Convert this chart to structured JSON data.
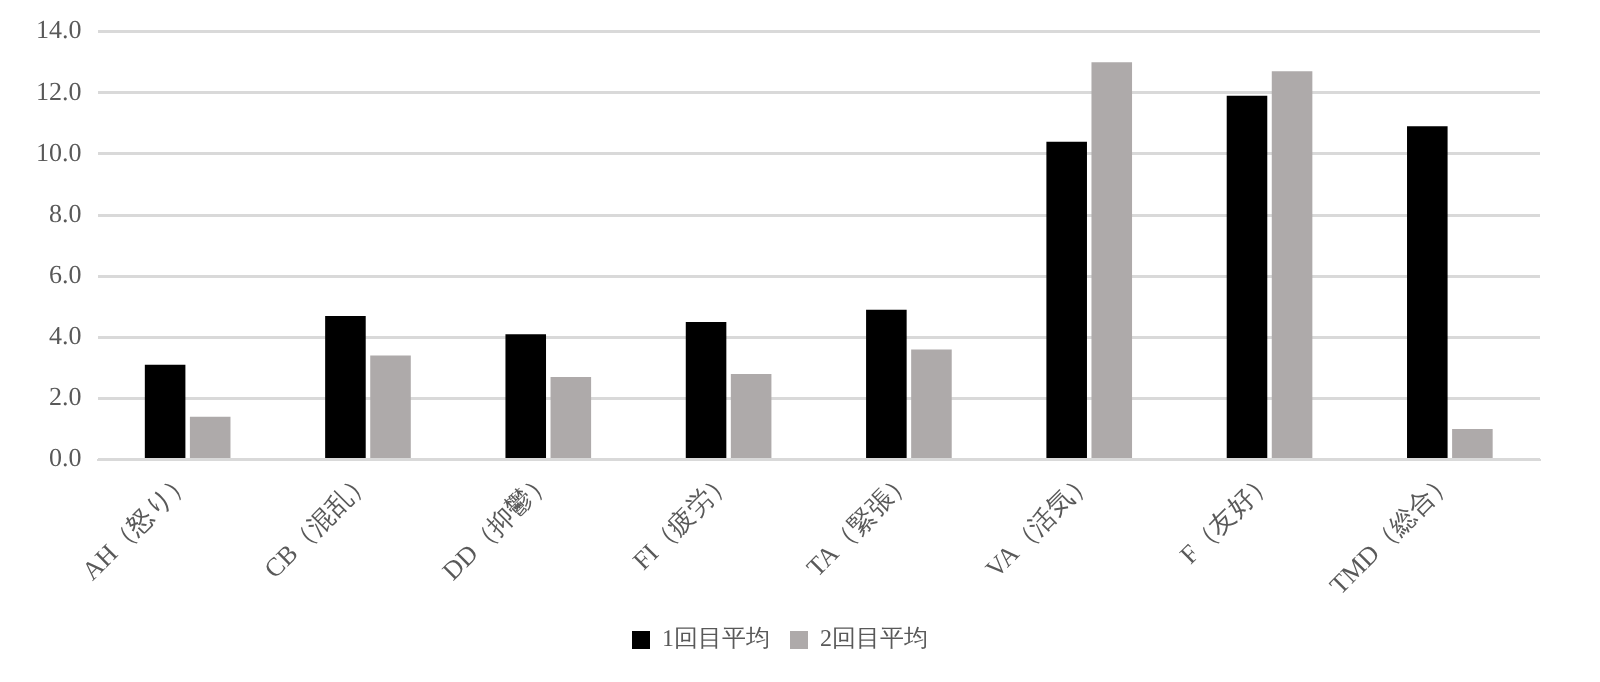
{
  "chart_data": {
    "type": "bar",
    "categories": [
      "AH（怒り）",
      "CB（混乱）",
      "DD（抑鬱）",
      "FI（疲労）",
      "TA（緊張）",
      "VA（活気）",
      "F（友好）",
      "TMD（総合）"
    ],
    "series": [
      {
        "name": "1回目平均",
        "color": "#000000",
        "values": [
          3.1,
          4.7,
          4.1,
          4.5,
          4.9,
          10.4,
          11.9,
          10.9
        ]
      },
      {
        "name": "2回目平均",
        "color": "#aeaaaa",
        "values": [
          1.4,
          3.4,
          2.7,
          2.8,
          3.6,
          13.0,
          12.7,
          1.0
        ]
      }
    ],
    "ylim": [
      0,
      14
    ],
    "yticks": [
      {
        "value": 0,
        "label": "0.0"
      },
      {
        "value": 2,
        "label": "2.0"
      },
      {
        "value": 4,
        "label": "4.0"
      },
      {
        "value": 6,
        "label": "6.0"
      },
      {
        "value": 8,
        "label": "8.0"
      },
      {
        "value": 10,
        "label": "10.0"
      },
      {
        "value": 12,
        "label": "12.0"
      },
      {
        "value": 14,
        "label": "14.0"
      }
    ],
    "grid": "y",
    "legend": "bottom"
  }
}
